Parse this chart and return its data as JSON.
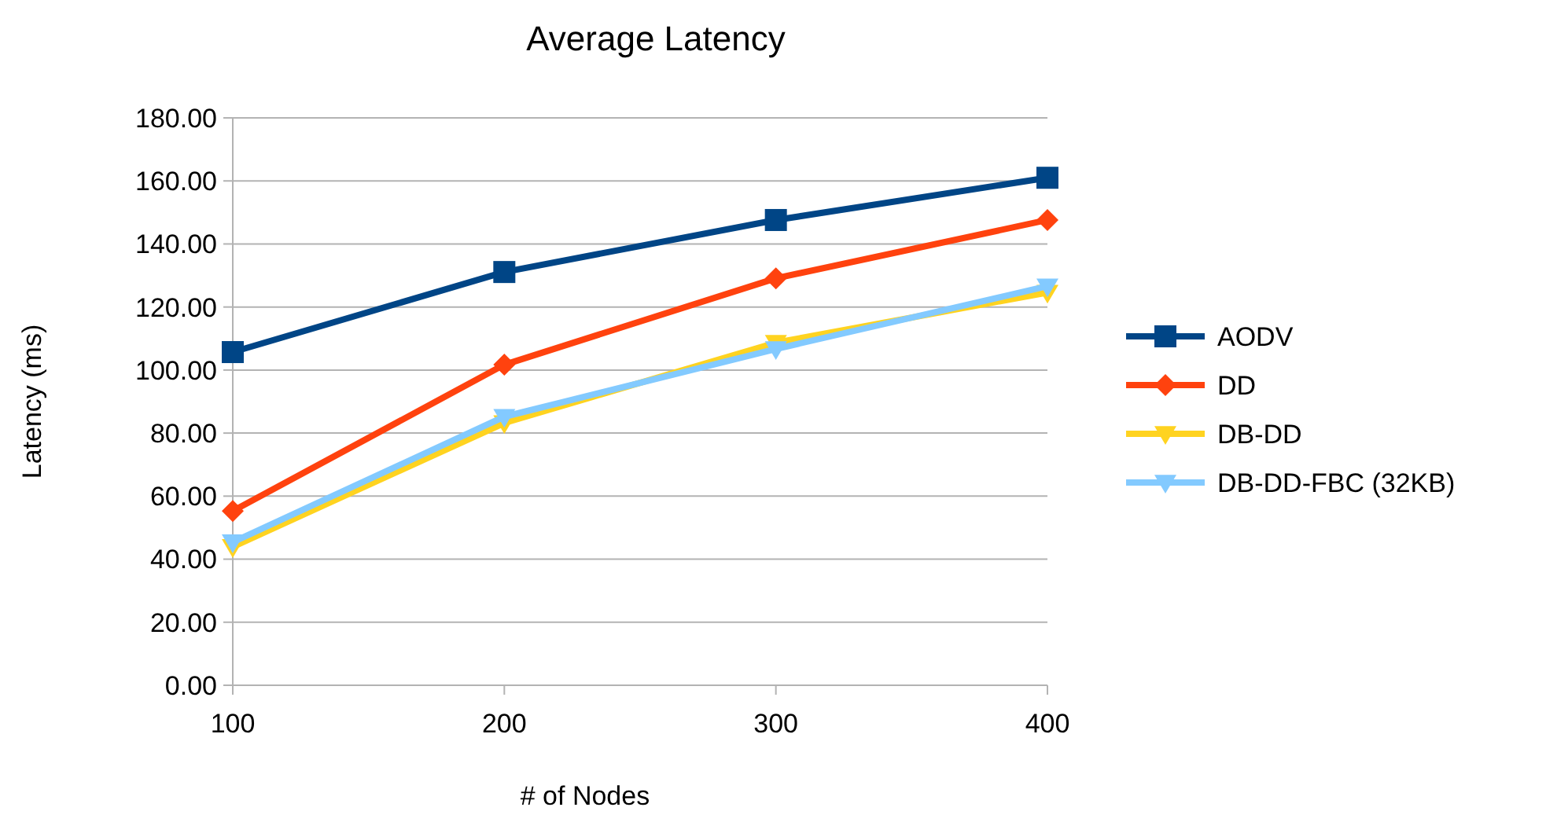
{
  "chart_data": {
    "type": "line",
    "title": "Average Latency",
    "xlabel": "# of Nodes",
    "ylabel": "Latency (ms)",
    "x": [
      100,
      200,
      300,
      400
    ],
    "series": [
      {
        "name": "AODV",
        "color": "#004586",
        "marker": "square",
        "values": [
          105.7,
          131.1,
          147.6,
          161
        ]
      },
      {
        "name": "DD",
        "color": "#ff420e",
        "marker": "diamond",
        "values": [
          55.3,
          101.7,
          129.1,
          147.6
        ]
      },
      {
        "name": "DB-DD",
        "color": "#ffd320",
        "marker": "triangle",
        "values": [
          43.9,
          83.2,
          108.7,
          124.6
        ]
      },
      {
        "name": "DB-DD-FBC (32KB)",
        "color": "#83caff",
        "marker": "triangle",
        "values": [
          45.4,
          85.2,
          106.7,
          126.6
        ]
      }
    ],
    "xlim": [
      100,
      400
    ],
    "xticks": [
      100,
      200,
      300,
      400
    ],
    "ylim": [
      0,
      180
    ],
    "yticks": [
      {
        "value": 0,
        "label": "0.00"
      },
      {
        "value": 20,
        "label": "20.00"
      },
      {
        "value": 40,
        "label": "40.00"
      },
      {
        "value": 60,
        "label": "60.00"
      },
      {
        "value": 80,
        "label": "80.00"
      },
      {
        "value": 100,
        "label": "100.00"
      },
      {
        "value": 120,
        "label": "120.00"
      },
      {
        "value": 140,
        "label": "140.00"
      },
      {
        "value": 160,
        "label": "160.00"
      },
      {
        "value": 180,
        "label": "180.00"
      }
    ],
    "grid": "y",
    "legend": "right",
    "line_style": "solid"
  }
}
